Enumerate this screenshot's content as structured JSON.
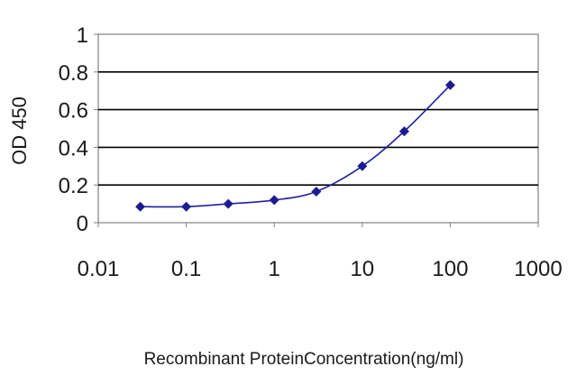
{
  "chart_data": {
    "type": "line",
    "title": "",
    "xlabel": "Recombinant ProteinConcentration(ng/ml)",
    "ylabel": "OD 450",
    "x_scale": "log",
    "xlim": [
      0.01,
      1000
    ],
    "ylim": [
      0,
      1
    ],
    "x_ticks": [
      "0.01",
      "0.1",
      "1",
      "10",
      "100",
      "1000"
    ],
    "y_ticks": [
      "0",
      "0.2",
      "0.4",
      "0.6",
      "0.8",
      "1"
    ],
    "grid": "horizontal",
    "series": [
      {
        "x": [
          0.03,
          0.1,
          0.3,
          1,
          3,
          10,
          30,
          100
        ],
        "y": [
          0.085,
          0.085,
          0.1,
          0.12,
          0.165,
          0.3,
          0.485,
          0.73
        ],
        "color": "#1c1c90"
      }
    ]
  }
}
